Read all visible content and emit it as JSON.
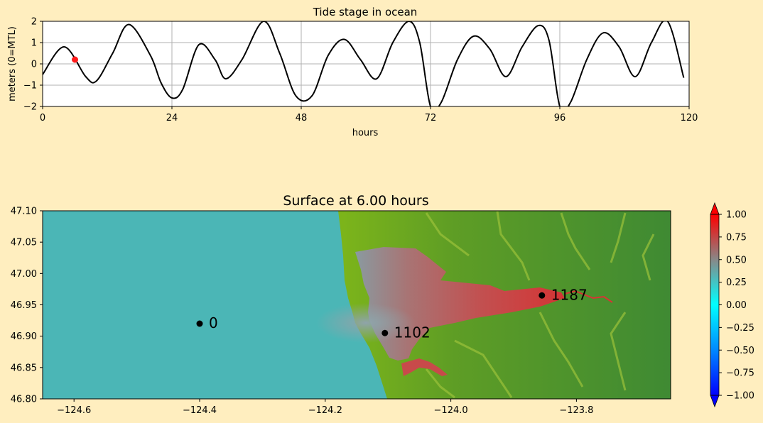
{
  "background_color": "#ffeebf",
  "chart_data": [
    {
      "type": "line",
      "title": "Tide stage in ocean",
      "xlabel": "hours",
      "ylabel": "meters (0=MTL)",
      "xlim": [
        0,
        120
      ],
      "ylim": [
        -2,
        2
      ],
      "xticks": [
        0,
        24,
        48,
        72,
        96,
        120
      ],
      "yticks": [
        -2,
        -1,
        0,
        1,
        2
      ],
      "xtick_labels": [
        "0",
        "24",
        "48",
        "72",
        "96",
        "120"
      ],
      "ytick_labels": [
        "−2",
        "−1",
        "0",
        "1",
        "2"
      ],
      "grid": true,
      "line_color": "#000000",
      "marker_color": "#ff1a1a",
      "series": [
        {
          "x": [
            0,
            4,
            8,
            10,
            13,
            16,
            20,
            22,
            24,
            26,
            29,
            32,
            34,
            37,
            41,
            44,
            47,
            50,
            53,
            56,
            59,
            62,
            65,
            68,
            70,
            72,
            74,
            77,
            80,
            83,
            86,
            89,
            92,
            94,
            96,
            98,
            101,
            104,
            107,
            110,
            113,
            116,
            119
          ],
          "y": [
            -0.5,
            0.8,
            -0.6,
            -0.8,
            0.5,
            1.85,
            0.4,
            -0.9,
            -1.6,
            -1.2,
            0.9,
            0.2,
            -0.7,
            0.2,
            2.0,
            0.5,
            -1.5,
            -1.5,
            0.4,
            1.15,
            0.2,
            -0.7,
            1.0,
            2.0,
            1.0,
            -2.0,
            -1.8,
            0.2,
            1.3,
            0.7,
            -0.6,
            0.8,
            1.8,
            1.1,
            -2.0,
            -1.8,
            0.2,
            1.45,
            0.8,
            -0.6,
            1.0,
            2.0,
            -0.65
          ]
        }
      ],
      "current_point": {
        "x": 6,
        "y": 0.2
      }
    },
    {
      "type": "heatmap",
      "title": "Surface at 6.00 hours",
      "xlim": [
        -124.65,
        -123.65
      ],
      "ylim": [
        46.8,
        47.1
      ],
      "xticks": [
        -124.6,
        -124.4,
        -124.2,
        -124.0,
        -123.8
      ],
      "xtick_labels": [
        "−124.6",
        "−124.4",
        "−124.2",
        "−124.0",
        "−123.8"
      ],
      "yticks": [
        46.8,
        46.85,
        46.9,
        46.95,
        47.0,
        47.05,
        47.1
      ],
      "ytick_labels": [
        "46.80",
        "46.85",
        "46.90",
        "46.95",
        "47.00",
        "47.05",
        "47.10"
      ],
      "ocean_color": "#4bb6b6",
      "land_colors": [
        "#7db51a",
        "#5e9d25",
        "#3f8a33"
      ],
      "water_high_color": "#c84646",
      "gauges": [
        {
          "label": "0",
          "lon": -124.4,
          "lat": 46.92
        },
        {
          "label": "1102",
          "lon": -124.105,
          "lat": 46.905
        },
        {
          "label": "1187",
          "lon": -123.855,
          "lat": 46.965
        }
      ],
      "colorbar": {
        "range": [
          -1.0,
          1.0
        ],
        "ticks": [
          -1.0,
          -0.75,
          -0.5,
          -0.25,
          0.0,
          0.25,
          0.5,
          0.75,
          1.0
        ],
        "tick_labels": [
          "−1.00",
          "−0.75",
          "−0.50",
          "−0.25",
          "0.00",
          "0.25",
          "0.50",
          "0.75",
          "1.00"
        ],
        "colors": [
          "#0000ff",
          "#0088ff",
          "#00ffff",
          "#888888",
          "#ff0000"
        ]
      }
    }
  ]
}
